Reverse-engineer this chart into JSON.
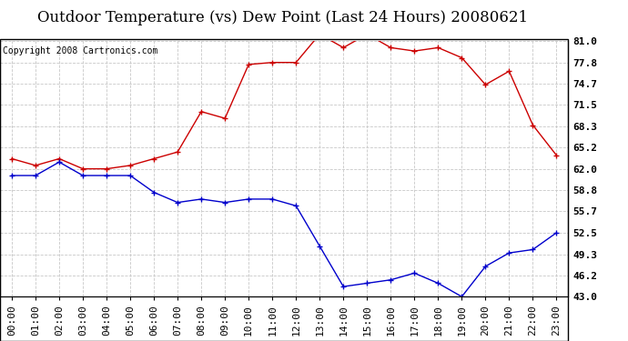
{
  "title": "Outdoor Temperature (vs) Dew Point (Last 24 Hours) 20080621",
  "copyright": "Copyright 2008 Cartronics.com",
  "hours": [
    "00:00",
    "01:00",
    "02:00",
    "03:00",
    "04:00",
    "05:00",
    "06:00",
    "07:00",
    "08:00",
    "09:00",
    "10:00",
    "11:00",
    "12:00",
    "13:00",
    "14:00",
    "15:00",
    "16:00",
    "17:00",
    "18:00",
    "19:00",
    "20:00",
    "21:00",
    "22:00",
    "23:00"
  ],
  "temp": [
    63.5,
    62.5,
    63.5,
    62.0,
    62.0,
    62.5,
    63.5,
    64.5,
    70.5,
    69.5,
    77.5,
    77.8,
    77.8,
    82.0,
    80.0,
    82.0,
    80.0,
    79.5,
    80.0,
    78.5,
    74.5,
    76.5,
    68.5,
    64.0
  ],
  "dew": [
    61.0,
    61.0,
    63.0,
    61.0,
    61.0,
    61.0,
    58.5,
    57.0,
    57.5,
    57.0,
    57.5,
    57.5,
    56.5,
    50.5,
    44.5,
    45.0,
    45.5,
    46.5,
    45.0,
    43.0,
    47.5,
    49.5,
    50.0,
    52.5
  ],
  "temp_color": "#cc0000",
  "dew_color": "#0000cc",
  "bg_color": "#ffffff",
  "grid_color": "#c8c8c8",
  "yticks": [
    43.0,
    46.2,
    49.3,
    52.5,
    55.7,
    58.8,
    62.0,
    65.2,
    68.3,
    71.5,
    74.7,
    77.8,
    81.0
  ],
  "ylim": [
    43.0,
    81.0
  ],
  "title_fontsize": 12,
  "copy_fontsize": 7,
  "tick_fontsize": 8
}
